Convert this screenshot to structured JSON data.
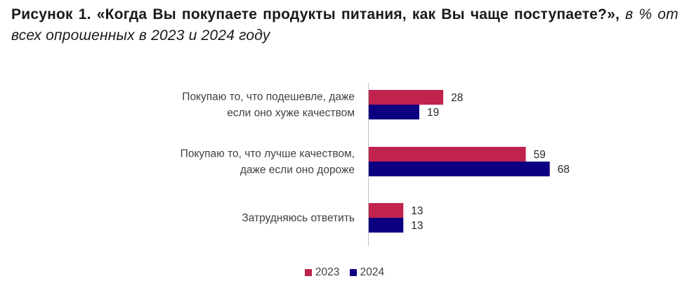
{
  "title": {
    "bold": "Рисунок 1. «Когда Вы покупаете продукты питания, как Вы чаще поступаете?»,",
    "italic": " в % от всех опрошенных в 2023 и 2024 году"
  },
  "colors": {
    "s2023": "#c0234e",
    "s2024": "#0d0080",
    "axis": "#bfbfbf"
  },
  "chart_data": {
    "type": "bar",
    "orientation": "horizontal",
    "categories": [
      [
        "Покупаю то, что подешевле, даже",
        "если оно хуже качеством"
      ],
      [
        "Покупаю то, что лучше качеством,",
        "даже если оно дороже"
      ],
      [
        "Затрудняюсь ответить"
      ]
    ],
    "series": [
      {
        "name": "2023",
        "values": [
          28,
          59,
          13
        ]
      },
      {
        "name": "2024",
        "values": [
          19,
          68,
          13
        ]
      }
    ],
    "legend": "bottom",
    "grid": false
  }
}
